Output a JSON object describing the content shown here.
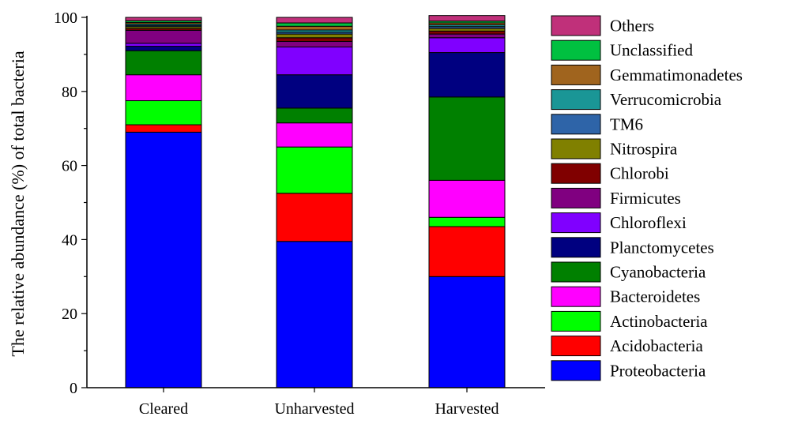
{
  "chart_data": {
    "type": "bar",
    "stacked": true,
    "title": "",
    "xlabel": "",
    "ylabel": "The relative abundance (%) of total bacteria",
    "ylim": [
      0,
      100
    ],
    "yticks": [
      0,
      20,
      40,
      60,
      80,
      100
    ],
    "categories": [
      "Cleared",
      "Unharvested",
      "Harvested"
    ],
    "legend_position": "right",
    "series": [
      {
        "name": "Proteobacteria",
        "color": "#0000ff",
        "values": [
          69.0,
          39.5,
          30.0
        ]
      },
      {
        "name": "Acidobacteria",
        "color": "#ff0000",
        "values": [
          2.0,
          13.0,
          13.5
        ]
      },
      {
        "name": "Actinobacteria",
        "color": "#00ff00",
        "values": [
          6.5,
          12.5,
          2.5
        ]
      },
      {
        "name": "Bacteroidetes",
        "color": "#ff00ff",
        "values": [
          7.0,
          6.5,
          10.0
        ]
      },
      {
        "name": "Cyanobacteria",
        "color": "#008000",
        "values": [
          6.5,
          4.0,
          22.5
        ]
      },
      {
        "name": "Planctomycetes",
        "color": "#000080",
        "values": [
          1.2,
          9.0,
          12.0
        ]
      },
      {
        "name": "Chloroflexi",
        "color": "#8000ff",
        "values": [
          0.8,
          7.5,
          4.0
        ]
      },
      {
        "name": "Firmicutes",
        "color": "#800080",
        "values": [
          3.5,
          1.5,
          1.0
        ]
      },
      {
        "name": "Chlorobi",
        "color": "#800000",
        "values": [
          0.5,
          1.0,
          0.8
        ]
      },
      {
        "name": "Nitrospira",
        "color": "#808000",
        "values": [
          0.5,
          1.0,
          0.7
        ]
      },
      {
        "name": "TM6",
        "color": "#2e64a8",
        "values": [
          0.3,
          0.5,
          0.5
        ]
      },
      {
        "name": "Verrucomicrobia",
        "color": "#1a9696",
        "values": [
          0.4,
          0.6,
          0.5
        ]
      },
      {
        "name": "Gemmatimonadetes",
        "color": "#a0641e",
        "values": [
          0.4,
          1.0,
          0.5
        ]
      },
      {
        "name": "Unclassified",
        "color": "#00c040",
        "values": [
          0.5,
          0.9,
          0.5
        ]
      },
      {
        "name": "Others",
        "color": "#c0307a",
        "values": [
          0.9,
          1.5,
          1.5
        ]
      }
    ]
  }
}
